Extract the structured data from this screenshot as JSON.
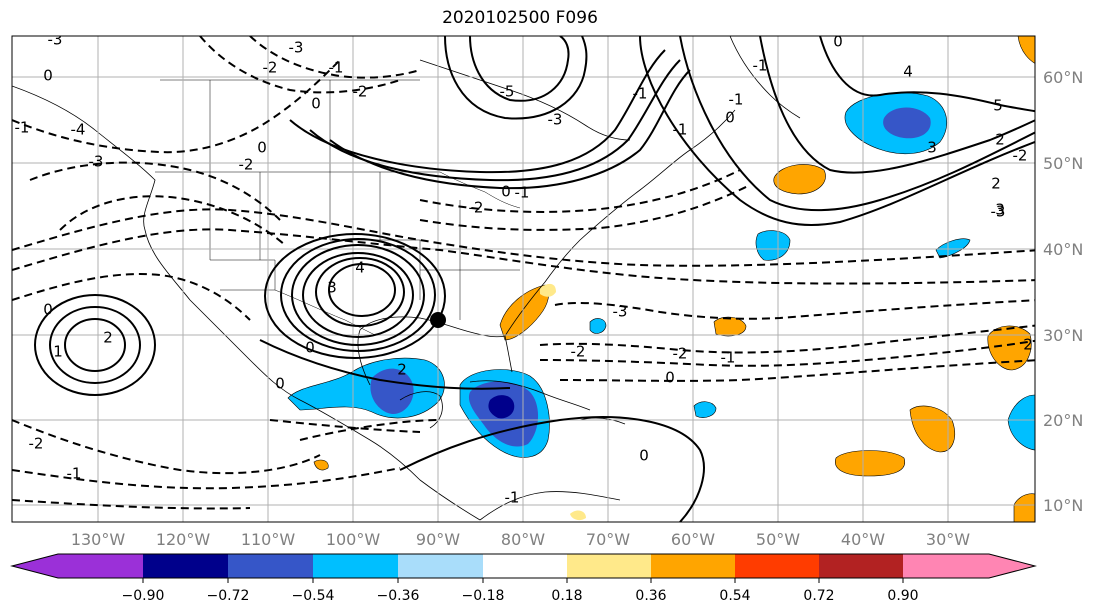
{
  "title": "2020102500 F096",
  "lat_labels": [
    "60°N",
    "50°N",
    "40°N",
    "30°N",
    "20°N",
    "10°N"
  ],
  "lon_labels": [
    "130°W",
    "120°W",
    "110°W",
    "100°W",
    "90°W",
    "80°W",
    "70°W",
    "60°W",
    "50°W",
    "40°W",
    "30°W"
  ],
  "colorbar": {
    "ticks": [
      "−0.90",
      "−0.72",
      "−0.54",
      "−0.36",
      "−0.18",
      "0.18",
      "0.36",
      "0.54",
      "0.72",
      "0.90"
    ],
    "colors": [
      "#9b30d8",
      "#00008b",
      "#3656c8",
      "#00bfff",
      "#a9ddfa",
      "#ffffff",
      "#ffe98a",
      "#ffa500",
      "#ff3c00",
      "#b22222",
      "#ff85b3"
    ]
  },
  "colors": {
    "land": "#ffffff",
    "grid": "#b0b0b0",
    "contour": "#000000"
  },
  "contour_labels": [
    {
      "t": "-3"
    },
    {
      "t": "-2"
    },
    {
      "t": "-3"
    },
    {
      "t": "0"
    },
    {
      "t": "-5"
    },
    {
      "t": "-3"
    },
    {
      "t": "-1"
    },
    {
      "t": "0"
    },
    {
      "t": "-1"
    },
    {
      "t": "2"
    },
    {
      "t": "0"
    },
    {
      "t": "-1"
    },
    {
      "t": "4"
    },
    {
      "t": "5"
    },
    {
      "t": "3"
    },
    {
      "t": "2"
    },
    {
      "t": "2"
    },
    {
      "t": "3"
    },
    {
      "t": "-4"
    },
    {
      "t": "-3"
    },
    {
      "t": "-2"
    },
    {
      "t": "-1"
    },
    {
      "t": "0"
    },
    {
      "t": "4"
    },
    {
      "t": "3"
    },
    {
      "t": "0"
    },
    {
      "t": "2"
    },
    {
      "t": "1"
    },
    {
      "t": "2"
    },
    {
      "t": "0"
    },
    {
      "t": "-2"
    },
    {
      "t": "-1"
    },
    {
      "t": "-3"
    },
    {
      "t": "-2"
    },
    {
      "t": "-2"
    },
    {
      "t": "-1"
    },
    {
      "t": "0"
    },
    {
      "t": "-1"
    },
    {
      "t": "-2"
    },
    {
      "t": "0"
    },
    {
      "t": "0"
    },
    {
      "t": "-1"
    },
    {
      "t": "0"
    },
    {
      "t": "-2"
    },
    {
      "t": "-1"
    },
    {
      "t": "0"
    },
    {
      "t": "-3"
    },
    {
      "t": "-2"
    },
    {
      "t": "-1"
    }
  ]
}
